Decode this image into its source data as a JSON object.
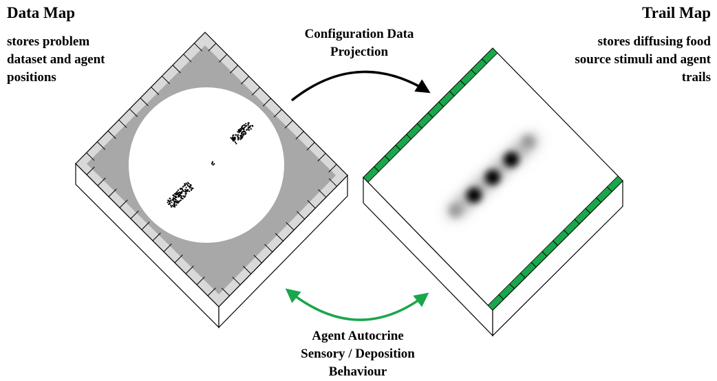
{
  "data_map": {
    "title": "Data Map",
    "description": [
      "stores problem",
      "dataset and agent",
      "positions"
    ]
  },
  "trail_map": {
    "title": "Trail Map",
    "description": [
      "stores diffusing food",
      "source stimuli and agent",
      "trails"
    ]
  },
  "projection_label": [
    "Configuration Data",
    "Projection"
  ],
  "autocrine_label": [
    "Agent Autocrine",
    "Sensory / Deposition",
    "Behaviour"
  ],
  "colors": {
    "trail_border": "#1aa64a",
    "autocrine_arrow": "#1aa64a",
    "projection_arrow": "#000000",
    "data_background": "#a8a8a8",
    "data_border": "#d9d9d9"
  }
}
